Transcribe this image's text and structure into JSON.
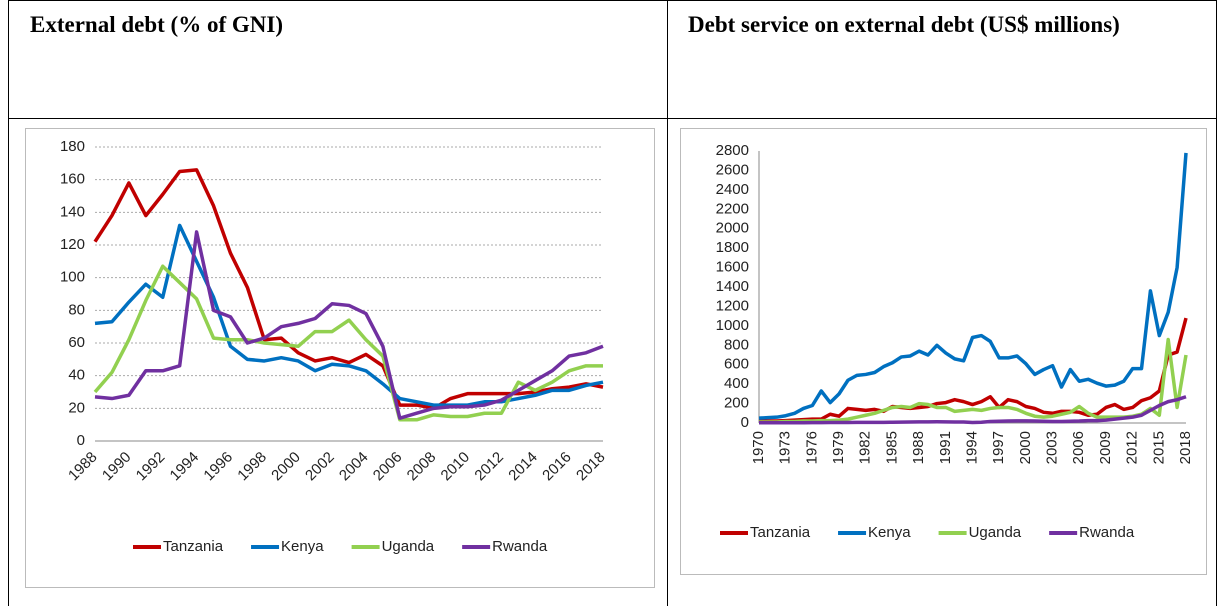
{
  "table": {
    "header": [
      "External debt (% of GNI)",
      "Debt service on external debt (US$ millions)"
    ]
  },
  "chart_data": [
    {
      "type": "line",
      "categories": [
        "1988",
        null,
        "1990",
        null,
        "1992",
        null,
        "1994",
        null,
        "1996",
        null,
        "1998",
        null,
        "2000",
        null,
        "2002",
        null,
        "2004",
        null,
        "2006",
        null,
        "2008",
        null,
        "2010",
        null,
        "2012",
        null,
        "2014",
        null,
        "2016",
        null,
        "2018"
      ],
      "ylim": [
        0,
        180
      ],
      "yticks": [
        0,
        20,
        40,
        60,
        80,
        100,
        120,
        140,
        160,
        180
      ],
      "grid": true,
      "legend": "bottom",
      "series": [
        {
          "name": "Tanzania",
          "color": "#c00000",
          "values": [
            122,
            138,
            158,
            138,
            151,
            165,
            166,
            144,
            115,
            94,
            62,
            63,
            54,
            49,
            51,
            48,
            53,
            46,
            22,
            22,
            20,
            26,
            29,
            29,
            29,
            29,
            30,
            32,
            33,
            35,
            33
          ]
        },
        {
          "name": "Kenya",
          "color": "#0070c0",
          "values": [
            72,
            73,
            85,
            96,
            88,
            132,
            110,
            88,
            58,
            50,
            49,
            51,
            49,
            43,
            47,
            46,
            43,
            35,
            26,
            24,
            22,
            22,
            22,
            24,
            24,
            26,
            28,
            31,
            31,
            34,
            36
          ]
        },
        {
          "name": "Uganda",
          "color": "#92d050",
          "values": [
            30,
            42,
            62,
            86,
            107,
            97,
            87,
            63,
            62,
            62,
            60,
            59,
            58,
            67,
            67,
            74,
            62,
            52,
            13,
            13,
            16,
            15,
            15,
            17,
            17,
            36,
            31,
            36,
            43,
            46,
            46
          ]
        },
        {
          "name": "Rwanda",
          "color": "#7030a0",
          "values": [
            27,
            26,
            28,
            43,
            43,
            46,
            128,
            80,
            76,
            60,
            63,
            70,
            72,
            75,
            84,
            83,
            78,
            58,
            14,
            17,
            20,
            21,
            21,
            22,
            25,
            31,
            37,
            43,
            52,
            54,
            58
          ]
        }
      ]
    },
    {
      "type": "line",
      "categories": [
        "1970",
        null,
        null,
        "1973",
        null,
        null,
        "1976",
        null,
        null,
        "1979",
        null,
        null,
        "1982",
        null,
        null,
        "1985",
        null,
        null,
        "1988",
        null,
        null,
        "1991",
        null,
        null,
        "1994",
        null,
        null,
        "1997",
        null,
        null,
        "2000",
        null,
        null,
        "2003",
        null,
        null,
        "2006",
        null,
        null,
        "2009",
        null,
        null,
        "2012",
        null,
        null,
        "2015",
        null,
        null,
        "2018"
      ],
      "ylim": [
        0,
        2800
      ],
      "yticks": [
        0,
        200,
        400,
        600,
        800,
        1000,
        1200,
        1400,
        1600,
        1800,
        2000,
        2200,
        2400,
        2600,
        2800
      ],
      "grid": false,
      "legend": "bottom",
      "series": [
        {
          "name": "Tanzania",
          "color": "#c00000",
          "values": [
            20,
            20,
            20,
            25,
            30,
            35,
            40,
            40,
            90,
            70,
            150,
            140,
            130,
            140,
            120,
            170,
            160,
            150,
            160,
            170,
            200,
            210,
            240,
            220,
            190,
            220,
            270,
            160,
            240,
            220,
            170,
            150,
            110,
            100,
            120,
            120,
            110,
            80,
            90,
            160,
            190,
            140,
            160,
            230,
            260,
            330,
            700,
            730,
            1080
          ]
        },
        {
          "name": "Kenya",
          "color": "#0070c0",
          "values": [
            50,
            55,
            60,
            75,
            100,
            150,
            180,
            330,
            210,
            300,
            440,
            490,
            500,
            520,
            580,
            620,
            680,
            690,
            740,
            700,
            800,
            720,
            660,
            640,
            880,
            900,
            840,
            670,
            670,
            690,
            610,
            500,
            550,
            590,
            370,
            550,
            430,
            450,
            410,
            380,
            390,
            430,
            560,
            560,
            1360,
            900,
            1140,
            1600,
            2780
          ]
        },
        {
          "name": "Uganda",
          "color": "#92d050",
          "values": [
            10,
            10,
            10,
            15,
            15,
            20,
            20,
            25,
            25,
            30,
            40,
            60,
            80,
            100,
            130,
            160,
            170,
            160,
            200,
            190,
            160,
            160,
            120,
            130,
            140,
            130,
            150,
            160,
            160,
            140,
            100,
            70,
            60,
            70,
            90,
            110,
            170,
            100,
            60,
            60,
            60,
            60,
            70,
            90,
            150,
            80,
            860,
            160,
            700
          ]
        },
        {
          "name": "Rwanda",
          "color": "#7030a0",
          "values": [
            2,
            2,
            2,
            3,
            3,
            3,
            4,
            4,
            5,
            5,
            5,
            6,
            6,
            7,
            7,
            8,
            9,
            10,
            12,
            12,
            13,
            12,
            10,
            10,
            5,
            8,
            15,
            18,
            20,
            22,
            22,
            20,
            18,
            15,
            15,
            18,
            20,
            25,
            25,
            30,
            40,
            50,
            60,
            80,
            130,
            180,
            220,
            240,
            270
          ]
        }
      ]
    }
  ]
}
